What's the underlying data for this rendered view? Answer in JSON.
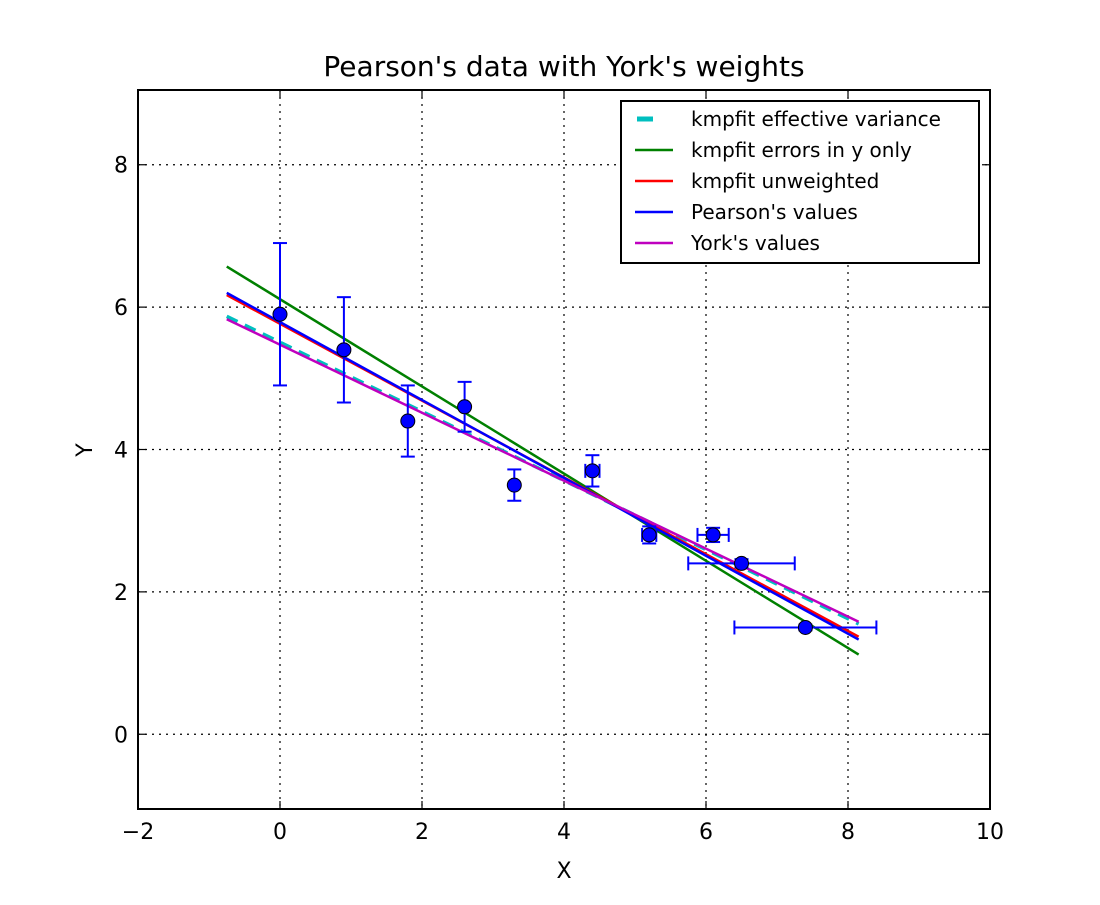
{
  "chart_data": {
    "type": "scatter",
    "title": "Pearson's data with York's weights",
    "xlabel": "X",
    "ylabel": "Y",
    "xlim": [
      -2,
      10
    ],
    "ylim": [
      -1.05,
      9.05
    ],
    "x_ticks": [
      -2,
      0,
      2,
      4,
      6,
      8,
      10
    ],
    "y_ticks": [
      0,
      2,
      4,
      6,
      8
    ],
    "x_tick_labels": [
      "−2",
      "0",
      "2",
      "4",
      "6",
      "8",
      "10"
    ],
    "y_tick_labels": [
      "0",
      "2",
      "4",
      "6",
      "8"
    ],
    "grid": true,
    "legend_position": "top-right",
    "points": {
      "color": "#0000ff",
      "x": [
        0.0,
        0.9,
        1.8,
        2.6,
        3.3,
        4.4,
        5.2,
        6.1,
        6.5,
        7.4
      ],
      "y": [
        5.9,
        5.4,
        4.4,
        4.6,
        3.5,
        3.7,
        2.8,
        2.8,
        2.4,
        1.5
      ],
      "x_err": [
        0.03,
        0.03,
        0.03,
        0.03,
        0.03,
        0.1,
        0.1,
        0.22,
        0.75,
        1.0
      ],
      "y_err": [
        1.0,
        0.74,
        0.5,
        0.35,
        0.22,
        0.22,
        0.12,
        0.1,
        0.06,
        0.04
      ]
    },
    "series": [
      {
        "name": "kmpfit effective variance",
        "color": "#00bfbf",
        "dash": true,
        "x": [
          -0.75,
          8.15
        ],
        "y": [
          5.87,
          1.55
        ]
      },
      {
        "name": "kmpfit errors in y only",
        "color": "#008000",
        "dash": false,
        "x": [
          -0.75,
          8.15
        ],
        "y": [
          6.57,
          1.12
        ]
      },
      {
        "name": "kmpfit unweighted",
        "color": "#ff0000",
        "dash": false,
        "x": [
          -0.75,
          8.15
        ],
        "y": [
          6.17,
          1.37
        ]
      },
      {
        "name": "Pearson's values",
        "color": "#0000ff",
        "dash": false,
        "x": [
          -0.75,
          8.15
        ],
        "y": [
          6.2,
          1.33
        ]
      },
      {
        "name": "York's values",
        "color": "#bf00bf",
        "dash": false,
        "x": [
          -0.75,
          8.15
        ],
        "y": [
          5.83,
          1.58
        ]
      }
    ]
  }
}
